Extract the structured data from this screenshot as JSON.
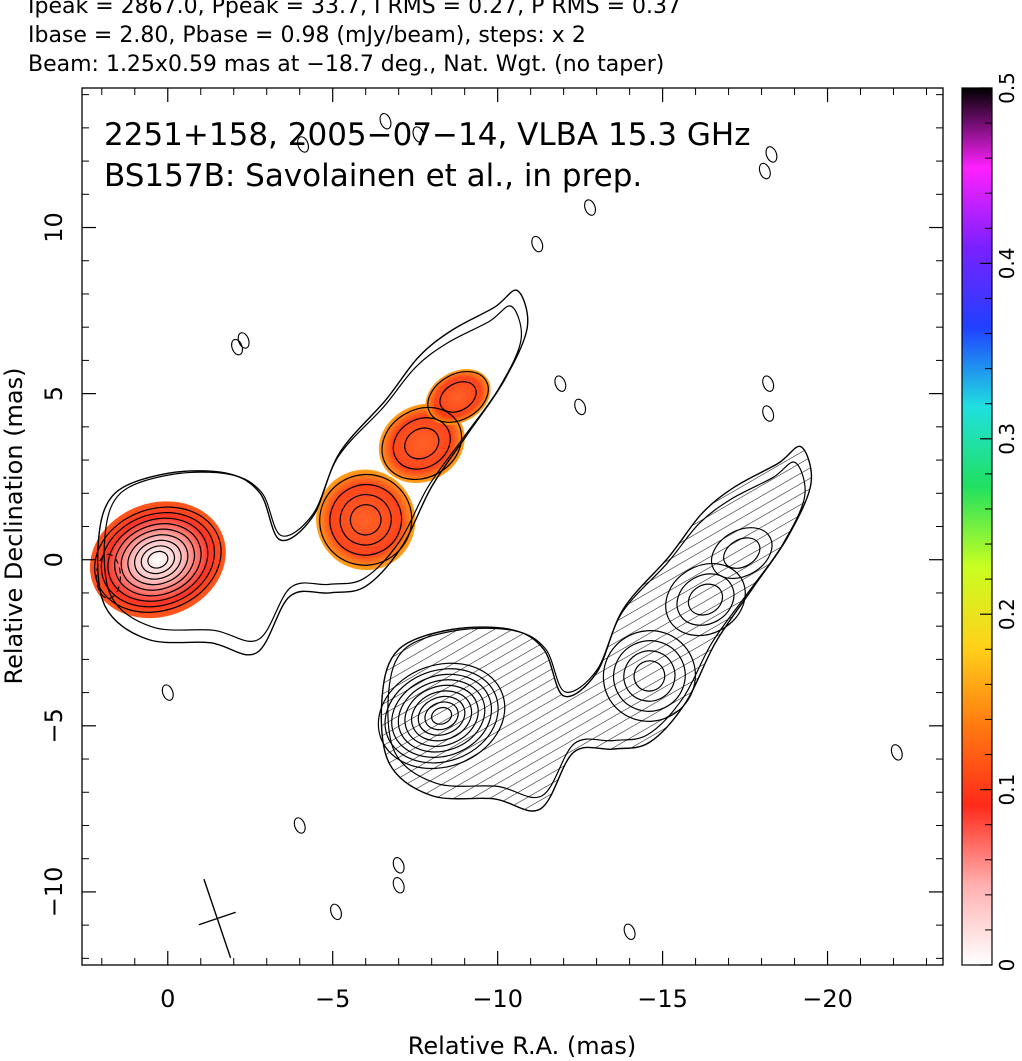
{
  "header": {
    "line1": "Ipeak = 2867.0, Ppeak = 33.7, I RMS = 0.27, P RMS = 0.37",
    "line2": "Ibase = 2.80, Pbase = 0.98 (mJy/beam), steps: x 2",
    "line3": "Beam: 1.25x0.59 mas at −18.7 deg., Nat. Wgt. (no taper)"
  },
  "chart_data": {
    "type": "heatmap",
    "annotation": [
      "2251+158, 2005−07−14, VLBA 15.3 GHz",
      "BS157B: Savolainen et al., in prep."
    ],
    "xlabel": "Relative R.A. (mas)",
    "ylabel": "Relative Declination (mas)",
    "xlim": [
      2.6,
      -23.5
    ],
    "ylim": [
      -12.2,
      14.2
    ],
    "xticks": [
      0,
      -5,
      -10,
      -15,
      -20
    ],
    "xtick_labels": [
      "0",
      "−5",
      "−10",
      "−15",
      "−20"
    ],
    "yticks": [
      -10,
      -5,
      0,
      5,
      10
    ],
    "ytick_labels": [
      "−10",
      "−5",
      "0",
      "5",
      "10"
    ],
    "colorbar": {
      "range": [
        0,
        0.5
      ],
      "ticks": [
        0,
        0.1,
        0.2,
        0.3,
        0.4,
        0.5
      ],
      "tick_labels": [
        "0",
        "0.1",
        "0.2",
        "0.3",
        "0.4",
        "0.5"
      ],
      "stops": [
        "#ffffff",
        "#ffb0b0",
        "#ff2a1a",
        "#ff7a10",
        "#ffd21a",
        "#c8ff20",
        "#20e060",
        "#20e0e0",
        "#2040ff",
        "#7a20ff",
        "#ff20ff",
        "#000000"
      ]
    },
    "components": [
      {
        "name": "core",
        "x": 0.3,
        "y": 0.0,
        "dx": 1.4,
        "dy": 0.9,
        "angle": -20,
        "levels": 9
      },
      {
        "name": "jet-inner",
        "x": -6.0,
        "y": 1.2,
        "dx": 1.0,
        "dy": 0.8,
        "angle": -25,
        "levels": 4
      },
      {
        "name": "jet-mid",
        "x": -7.7,
        "y": 3.5,
        "dx": 0.9,
        "dy": 0.6,
        "angle": -30,
        "levels": 3
      },
      {
        "name": "jet-outer",
        "x": -8.8,
        "y": 4.9,
        "dx": 0.7,
        "dy": 0.4,
        "angle": -30,
        "levels": 2
      }
    ],
    "pol_copy": {
      "dx": -8.6,
      "dy": -4.7
    },
    "small_features": [
      {
        "x": -2.1,
        "y": 6.4
      },
      {
        "x": -2.3,
        "y": 6.6
      },
      {
        "x": -11.2,
        "y": 9.5
      },
      {
        "x": -12.8,
        "y": 10.6
      },
      {
        "x": -11.9,
        "y": 5.3
      },
      {
        "x": -12.5,
        "y": 4.6
      },
      {
        "x": -4.0,
        "y": -8.0
      },
      {
        "x": -5.1,
        "y": -10.6
      },
      {
        "x": -7.0,
        "y": -9.2
      },
      {
        "x": -7.0,
        "y": -9.8
      },
      {
        "x": -14.0,
        "y": -11.2
      },
      {
        "x": -22.1,
        "y": -5.8
      },
      {
        "x": 0.0,
        "y": -4.0
      },
      {
        "x": -18.3,
        "y": 12.2
      },
      {
        "x": -18.1,
        "y": 11.7
      },
      {
        "x": -18.2,
        "y": 5.3
      },
      {
        "x": -18.2,
        "y": 4.4
      },
      {
        "x": -7.6,
        "y": 12.8
      },
      {
        "x": -6.6,
        "y": 13.2
      },
      {
        "x": -4.1,
        "y": 12.5
      }
    ],
    "beam": {
      "x": -1.5,
      "y": -10.8,
      "major": 1.25,
      "minor": 0.59,
      "angle": -18.7
    }
  }
}
